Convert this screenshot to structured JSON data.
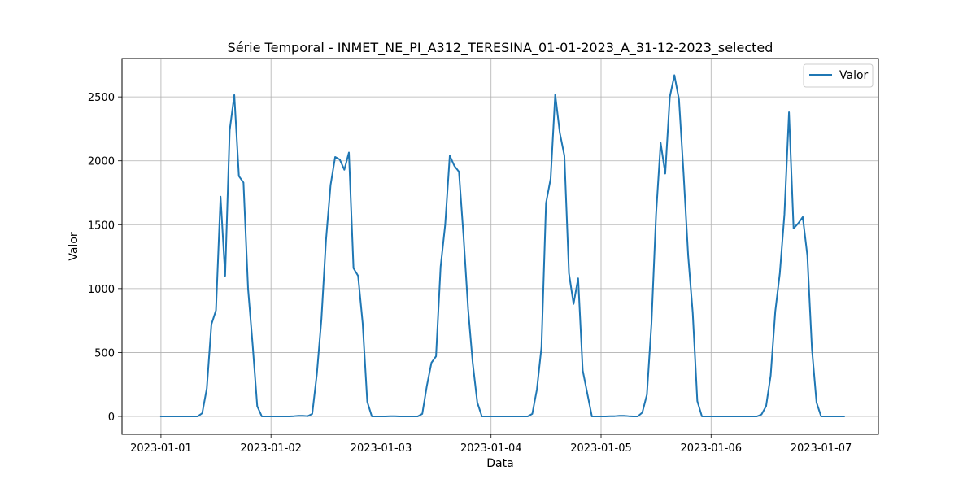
{
  "chart_data": {
    "type": "line",
    "title": "Série Temporal - INMET_NE_PI_A312_TERESINA_01-01-2023_A_31-12-2023_selected",
    "xlabel": "Data",
    "ylabel": "Valor",
    "x_tick_labels": [
      "2023-01-01",
      "2023-01-02",
      "2023-01-03",
      "2023-01-04",
      "2023-01-05",
      "2023-01-06",
      "2023-01-07"
    ],
    "y_ticks": [
      0,
      500,
      1000,
      1500,
      2000,
      2500
    ],
    "xlim": [
      "2022-12-31 15:30",
      "2023-01-07 12:30"
    ],
    "ylim": [
      -140,
      2800
    ],
    "grid": true,
    "legend_position": "top-right",
    "series": [
      {
        "name": "Valor",
        "color": "#1f77b4",
        "x": [
          "2023-01-01 00:00",
          "2023-01-01 01:00",
          "2023-01-01 02:00",
          "2023-01-01 03:00",
          "2023-01-01 04:00",
          "2023-01-01 05:00",
          "2023-01-01 06:00",
          "2023-01-01 07:00",
          "2023-01-01 08:00",
          "2023-01-01 09:00",
          "2023-01-01 10:00",
          "2023-01-01 11:00",
          "2023-01-01 12:00",
          "2023-01-01 13:00",
          "2023-01-01 14:00",
          "2023-01-01 15:00",
          "2023-01-01 16:00",
          "2023-01-01 17:00",
          "2023-01-01 18:00",
          "2023-01-01 19:00",
          "2023-01-01 20:00",
          "2023-01-01 21:00",
          "2023-01-01 22:00",
          "2023-01-01 23:00",
          "2023-01-02 00:00",
          "2023-01-02 01:00",
          "2023-01-02 02:00",
          "2023-01-02 03:00",
          "2023-01-02 04:00",
          "2023-01-02 05:00",
          "2023-01-02 06:00",
          "2023-01-02 07:00",
          "2023-01-02 08:00",
          "2023-01-02 09:00",
          "2023-01-02 10:00",
          "2023-01-02 11:00",
          "2023-01-02 12:00",
          "2023-01-02 13:00",
          "2023-01-02 14:00",
          "2023-01-02 15:00",
          "2023-01-02 16:00",
          "2023-01-02 17:00",
          "2023-01-02 18:00",
          "2023-01-02 19:00",
          "2023-01-02 20:00",
          "2023-01-02 21:00",
          "2023-01-02 22:00",
          "2023-01-02 23:00",
          "2023-01-03 00:00",
          "2023-01-03 01:00",
          "2023-01-03 02:00",
          "2023-01-03 03:00",
          "2023-01-03 04:00",
          "2023-01-03 05:00",
          "2023-01-03 06:00",
          "2023-01-03 07:00",
          "2023-01-03 08:00",
          "2023-01-03 09:00",
          "2023-01-03 10:00",
          "2023-01-03 11:00",
          "2023-01-03 12:00",
          "2023-01-03 13:00",
          "2023-01-03 14:00",
          "2023-01-03 15:00",
          "2023-01-03 16:00",
          "2023-01-03 17:00",
          "2023-01-03 18:00",
          "2023-01-03 19:00",
          "2023-01-03 20:00",
          "2023-01-03 21:00",
          "2023-01-03 22:00",
          "2023-01-03 23:00",
          "2023-01-04 00:00",
          "2023-01-04 01:00",
          "2023-01-04 02:00",
          "2023-01-04 03:00",
          "2023-01-04 04:00",
          "2023-01-04 05:00",
          "2023-01-04 06:00",
          "2023-01-04 07:00",
          "2023-01-04 08:00",
          "2023-01-04 09:00",
          "2023-01-04 10:00",
          "2023-01-04 11:00",
          "2023-01-04 12:00",
          "2023-01-04 13:00",
          "2023-01-04 14:00",
          "2023-01-04 15:00",
          "2023-01-04 16:00",
          "2023-01-04 17:00",
          "2023-01-04 18:00",
          "2023-01-04 19:00",
          "2023-01-04 20:00",
          "2023-01-04 21:00",
          "2023-01-04 22:00",
          "2023-01-04 23:00",
          "2023-01-05 00:00",
          "2023-01-05 01:00",
          "2023-01-05 02:00",
          "2023-01-05 03:00",
          "2023-01-05 04:00",
          "2023-01-05 05:00",
          "2023-01-05 06:00",
          "2023-01-05 07:00",
          "2023-01-05 08:00",
          "2023-01-05 09:00",
          "2023-01-05 10:00",
          "2023-01-05 11:00",
          "2023-01-05 12:00",
          "2023-01-05 13:00",
          "2023-01-05 14:00",
          "2023-01-05 15:00",
          "2023-01-05 16:00",
          "2023-01-05 17:00",
          "2023-01-05 18:00",
          "2023-01-05 19:00",
          "2023-01-05 20:00",
          "2023-01-05 21:00",
          "2023-01-05 22:00",
          "2023-01-05 23:00",
          "2023-01-06 00:00",
          "2023-01-06 01:00",
          "2023-01-06 02:00",
          "2023-01-06 03:00",
          "2023-01-06 04:00",
          "2023-01-06 05:00",
          "2023-01-06 06:00",
          "2023-01-06 07:00",
          "2023-01-06 08:00",
          "2023-01-06 09:00",
          "2023-01-06 10:00",
          "2023-01-06 11:00",
          "2023-01-06 12:00",
          "2023-01-06 13:00",
          "2023-01-06 14:00",
          "2023-01-06 15:00",
          "2023-01-06 16:00",
          "2023-01-06 17:00",
          "2023-01-06 18:00",
          "2023-01-06 19:00",
          "2023-01-06 20:00",
          "2023-01-06 21:00",
          "2023-01-06 22:00",
          "2023-01-06 23:00",
          "2023-01-07 00:00",
          "2023-01-07 01:00",
          "2023-01-07 02:00",
          "2023-01-07 03:00",
          "2023-01-07 04:00",
          "2023-01-07 05:00"
        ],
        "y": [
          0,
          0,
          0,
          0,
          0,
          0,
          0,
          0,
          0,
          25,
          220,
          720,
          830,
          1720,
          1100,
          2240,
          2515,
          1880,
          1830,
          1000,
          560,
          80,
          0,
          0,
          0,
          0,
          0,
          0,
          0,
          2,
          5,
          5,
          2,
          20,
          330,
          760,
          1380,
          1810,
          2030,
          2010,
          1930,
          2065,
          1160,
          1100,
          730,
          115,
          0,
          0,
          0,
          0,
          2,
          2,
          0,
          0,
          0,
          0,
          0,
          20,
          240,
          420,
          470,
          1170,
          1500,
          2040,
          1960,
          1915,
          1410,
          840,
          420,
          110,
          0,
          0,
          0,
          0,
          0,
          0,
          0,
          0,
          0,
          0,
          0,
          20,
          210,
          540,
          1670,
          1860,
          2520,
          2220,
          2040,
          1120,
          880,
          1080,
          360,
          180,
          0,
          0,
          0,
          0,
          2,
          2,
          5,
          5,
          2,
          0,
          0,
          30,
          170,
          730,
          1580,
          2140,
          1900,
          2500,
          2670,
          2480,
          1900,
          1260,
          810,
          120,
          0,
          0,
          0,
          0,
          0,
          0,
          0,
          0,
          0,
          0,
          0,
          0,
          0,
          15,
          80,
          320,
          820,
          1120,
          1580,
          2380,
          1470,
          1510,
          1560,
          1260,
          530,
          110,
          0,
          0,
          0,
          0,
          0,
          0
        ]
      }
    ]
  }
}
